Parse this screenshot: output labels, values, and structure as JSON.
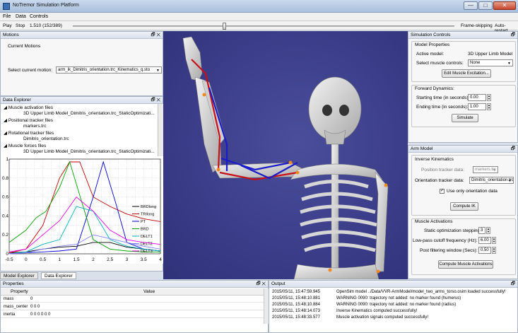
{
  "window": {
    "title": "NoTremor Simulation Platform",
    "minimize": "—",
    "maximize": "□",
    "close": "✕"
  },
  "menu": [
    "File",
    "Data",
    "Controls"
  ],
  "playbar": {
    "play": "Play",
    "stop": "Stop",
    "time": "1.510 (152/389)",
    "frame_skipping": "Frame-skipping",
    "auto_restart": "Auto-restart"
  },
  "motions": {
    "header": "Motions",
    "current_motions": "Current Motions",
    "select_label": "Select current motion:",
    "select_value": "arm_ik_Dimitris_orientation.trc_Kinematics_q.sto"
  },
  "data_explorer": {
    "header": "Data Explorer",
    "tree": [
      {
        "text": "Muscle activation files",
        "level": 0
      },
      {
        "text": "3D Upper Limb Model_Dimitris_orientation.trc_StaticOptimizati...",
        "level": 1
      },
      {
        "text": "Positional tracker files",
        "level": 0
      },
      {
        "text": "markers.trc",
        "level": 1
      },
      {
        "text": "Rotational tracker files",
        "level": 0
      },
      {
        "text": "Dimitris_orientation.trc",
        "level": 1
      },
      {
        "text": "Muscle forces files",
        "level": 0
      },
      {
        "text": "3D Upper Limb Model_Dimitris_orientation.trc_StaticOptimizati...",
        "level": 1
      }
    ]
  },
  "bottom_tabs": [
    "Model Explorer",
    "Data Explorer"
  ],
  "chart_data": {
    "type": "line",
    "title": "",
    "xlabel": "",
    "ylabel": "",
    "xlim": [
      -0.5,
      4
    ],
    "ylim": [
      0,
      1
    ],
    "xticks": [
      "-0.5",
      "0",
      "0.5",
      "1",
      "1.5",
      "2",
      "2.5",
      "3",
      "3.5",
      "4"
    ],
    "yticks": [
      "0",
      "0.2",
      "0.4",
      "0.6",
      "0.8",
      "1"
    ],
    "legend_position": "right",
    "grid": true,
    "series": [
      {
        "name": "BRDlong",
        "color": "#000000",
        "x": [
          -0.5,
          0,
          0.5,
          1,
          1.5,
          2,
          2.5,
          3,
          3.5,
          4
        ],
        "y": [
          0.01,
          0.02,
          0.05,
          0.07,
          0.08,
          0.12,
          0.12,
          0.07,
          0.05,
          0.03
        ]
      },
      {
        "name": "TRIlong",
        "color": "#c00000",
        "x": [
          -0.5,
          0,
          0.5,
          1,
          1.3,
          1.6,
          2,
          2.5,
          3,
          3.5,
          4
        ],
        "y": [
          0.01,
          0.05,
          0.3,
          0.8,
          0.97,
          0.97,
          0.6,
          0.5,
          0.42,
          0.37,
          0.34
        ]
      },
      {
        "name": "PT",
        "color": "#0000d0",
        "x": [
          -0.5,
          0,
          0.5,
          1,
          1.5,
          2,
          2.3,
          2.7,
          3,
          3.5,
          4
        ],
        "y": [
          0.0,
          0.01,
          0.02,
          0.03,
          0.05,
          0.6,
          0.97,
          0.5,
          0.12,
          0.05,
          0.03
        ]
      },
      {
        "name": "BRD",
        "color": "#00a000",
        "x": [
          -0.5,
          0,
          0.3,
          0.6,
          1,
          1.3,
          1.7,
          2,
          2.5,
          3,
          3.5,
          4
        ],
        "y": [
          0.12,
          0.25,
          0.38,
          0.45,
          0.7,
          0.97,
          0.5,
          0.15,
          0.05,
          0.03,
          0.02,
          0.02
        ]
      },
      {
        "name": "DELT1",
        "color": "#00b0c0",
        "x": [
          -0.5,
          0,
          0.5,
          1,
          1.5,
          2,
          2.5,
          3,
          3.5,
          4
        ],
        "y": [
          0.0,
          0.02,
          0.1,
          0.15,
          0.5,
          0.45,
          0.15,
          0.08,
          0.05,
          0.03
        ]
      },
      {
        "name": "DELT2",
        "color": "#8080ff",
        "x": [
          -0.5,
          0,
          0.5,
          1,
          1.5,
          2,
          2.5,
          3,
          3.5,
          4
        ],
        "y": [
          0.0,
          0.01,
          0.05,
          0.08,
          0.1,
          0.2,
          0.16,
          0.12,
          0.08,
          0.05
        ]
      },
      {
        "name": "DELT3",
        "color": "#e000e0",
        "x": [
          -0.5,
          0,
          0.5,
          1,
          1.5,
          2,
          2.5,
          3,
          3.5,
          4
        ],
        "y": [
          0.02,
          0.05,
          0.2,
          0.35,
          0.6,
          0.45,
          0.25,
          0.15,
          0.12,
          0.1
        ]
      }
    ]
  },
  "properties": {
    "header": "Properties",
    "col_property": "Property",
    "col_value": "Value",
    "rows": [
      {
        "property": "mass",
        "value": "0"
      },
      {
        "property": "mass_center",
        "value": "0 0 0"
      },
      {
        "property": "inertia",
        "value": "0 0 0 0 0 0"
      }
    ]
  },
  "output": {
    "header": "Output",
    "rows": [
      {
        "time": "2015/05/11, 15:47:59.945",
        "msg": "OpenSim model ../Data/VVR-ArmModel/model_two_arms_torso.osim loaded successfully!"
      },
      {
        "time": "2015/05/11, 15:48:10.881",
        "msg": "WARNING 0090: trajectory not added: no marker found (humerus)"
      },
      {
        "time": "2015/05/11, 15:48:10.884",
        "msg": "WARNING 0090: trajectory not added: no marker found (radius)"
      },
      {
        "time": "2015/05/11, 15:48:14.073",
        "msg": "Inverse Kinematics computed successfully!"
      },
      {
        "time": "2015/05/11, 15:48:33.577",
        "msg": "Muscle activation signals computed successfully!"
      }
    ]
  },
  "simulation_controls": {
    "header": "Simulation Controls",
    "model_properties": "Model Properties",
    "active_model_label": "Active model:",
    "active_model_value": "3D Upper Limb Model",
    "muscle_controls_label": "Select muscle controls:",
    "muscle_controls_value": "None",
    "edit_button": "Edit Muscle Excitation...",
    "forward_dynamics": "Forward Dynamics:",
    "start_label": "Starting time (in seconds):",
    "start_value": "0.00",
    "end_label": "Ending time (in seconds):",
    "end_value": "1.00",
    "simulate_button": "Simulate"
  },
  "arm_model": {
    "header": "Arm Model",
    "inverse_kinematics": "Inverse Kinematics",
    "position_label": "Position tracker data:",
    "position_value": "markers.trc",
    "orientation_label": "Orientation tracker data:",
    "orientation_value": "Dimitris_orientation.trc",
    "use_orientation": "Use only orientation data",
    "compute_ik": "Compute IK",
    "muscle_activations": "Muscle Activations",
    "static_label": "Static optimization stepping:",
    "static_value": "3",
    "lowpass_label": "Low-pass cutoff frequency (Hz):",
    "lowpass_value": "6.00",
    "postfilter_label": "Post filtering window (Secs):",
    "postfilter_value": "0.50",
    "compute_activations": "Compute Muscle Activations"
  },
  "panel_controls": "🗗 ✕",
  "panel_controls_single": "🗗"
}
